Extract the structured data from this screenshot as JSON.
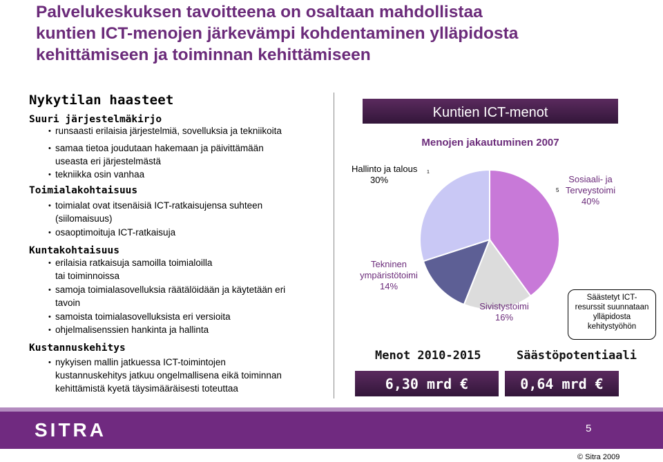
{
  "title": {
    "line1": "Palvelukeskuksen tavoitteena on osaltaan mahdollistaa",
    "line2": "kuntien ICT-menojen järkevämpi kohdentaminen ylläpidosta",
    "line3": "kehittämiseen ja toiminnan kehittämiseen"
  },
  "left": {
    "heading": "Nykytilan haasteet",
    "sections": [
      {
        "title": "Suuri järjestelmäkirjo",
        "items": [
          "runsaasti erilaisia järjestelmiä, sovelluksia ja tekniikoita",
          "samaa tietoa joudutaan hakemaan ja päivittämään",
          "useasta eri järjestelmästä",
          "tekniikka osin vanhaa"
        ]
      },
      {
        "title": "Toimialakohtaisuus",
        "items": [
          "toimialat ovat itsenäisiä ICT-ratkaisujensa suhteen",
          "(siilomaisuus)",
          "osaoptimoituja ICT-ratkaisuja"
        ]
      },
      {
        "title": "Kuntakohtaisuus",
        "items": [
          "erilaisia ratkaisuja samoilla toimialoilla",
          "tai toiminnoissa",
          "samoja toimialasovelluksia räätälöidään ja käytetään eri",
          "tavoin",
          "samoista toimialasovelluksista eri versioita",
          "ohjelmalisenssien hankinta ja hallinta"
        ]
      },
      {
        "title": "Kustannuskehitys",
        "items": [
          "nykyisen mallin jatkuessa ICT-toimintojen",
          "kustannuskehitys jatkuu ongelmallisena eikä toiminnan",
          "kehittämistä kyetä täysimääräisesti toteuttaa"
        ]
      }
    ]
  },
  "right": {
    "banner": "Kuntien ICT-menot",
    "subtitle": "Menojen jakautuminen 2007",
    "callout": [
      "Säästetyt ICT-",
      "resurssit suunnataan",
      "ylläpidosta",
      "kehitystyöhön"
    ],
    "kpi_left_label": "Menot 2010-2015",
    "kpi_left_value": "6,30 mrd €",
    "kpi_right_label": "Säästöpotentiaali",
    "kpi_right_value": "0,64 mrd €",
    "tiny_mark_left": "1",
    "tiny_mark_right": "5"
  },
  "chart_data": {
    "type": "pie",
    "title": "Menojen jakautuminen 2007",
    "slices": [
      {
        "label_lines": [
          "Sosiaali- ja",
          "Terveystoimi"
        ],
        "value": 40,
        "value_label": "40%",
        "color": "#c879d8"
      },
      {
        "label_lines": [
          "Sivistystoimi"
        ],
        "value": 16,
        "value_label": "16%",
        "color": "#dcdcdc"
      },
      {
        "label_lines": [
          "Tekninen",
          "ympäristötoimi"
        ],
        "value": 14,
        "value_label": "14%",
        "color": "#5d5f95"
      },
      {
        "label_lines": [
          "Hallinto ja talous"
        ],
        "value": 30,
        "value_label": "30%",
        "color": "#c9c8f5"
      }
    ]
  },
  "footer": {
    "logo": "SITRA",
    "page": "5",
    "copyright": "© Sitra 2009"
  },
  "colors": {
    "brand_purple": "#702a80",
    "title_purple": "#6b2b7a"
  }
}
